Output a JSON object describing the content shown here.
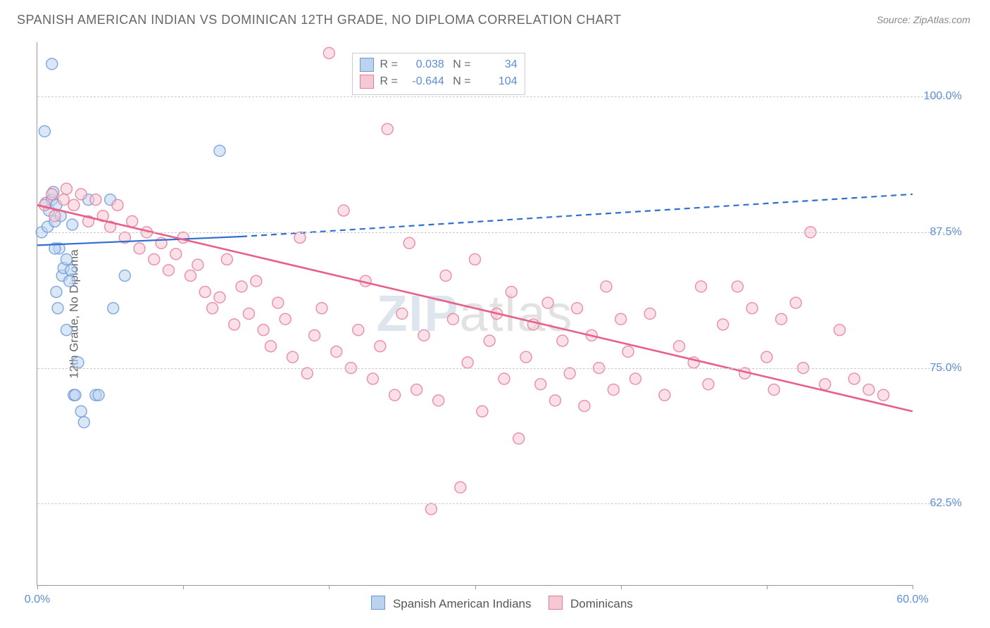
{
  "title": "SPANISH AMERICAN INDIAN VS DOMINICAN 12TH GRADE, NO DIPLOMA CORRELATION CHART",
  "source": "Source: ZipAtlas.com",
  "watermark_bold": "ZIP",
  "watermark_light": "atlas",
  "y_axis_title": "12th Grade, No Diploma",
  "chart": {
    "type": "scatter",
    "xlim": [
      0,
      60
    ],
    "ylim": [
      55,
      105
    ],
    "x_ticks": [
      0,
      10,
      20,
      30,
      40,
      50,
      60
    ],
    "x_tick_labels": {
      "0": "0.0%",
      "60": "60.0%"
    },
    "y_ticks": [
      62.5,
      75.0,
      87.5,
      100.0
    ],
    "y_tick_labels": [
      "62.5%",
      "75.0%",
      "87.5%",
      "100.0%"
    ],
    "grid_color": "#cccccc",
    "background_color": "#ffffff",
    "marker_radius": 8,
    "marker_stroke_width": 1.5,
    "series": [
      {
        "name": "Spanish American Indians",
        "fill": "#bcd3f0",
        "stroke": "#6b98d6",
        "R": "0.038",
        "N": "34",
        "trend": {
          "x1": 0,
          "y1": 86.3,
          "x2_solid": 14,
          "y2_solid": 87.1,
          "x2_dash": 60,
          "y2_dash": 91.0,
          "color": "#2f6fd0",
          "width": 2.2
        },
        "points": [
          [
            0.3,
            87.5
          ],
          [
            0.5,
            96.8
          ],
          [
            0.6,
            90.2
          ],
          [
            0.7,
            88.0
          ],
          [
            0.8,
            89.5
          ],
          [
            1.0,
            90.5
          ],
          [
            1.1,
            91.2
          ],
          [
            1.2,
            88.5
          ],
          [
            1.3,
            90.0
          ],
          [
            1.0,
            103.0
          ],
          [
            1.3,
            82.0
          ],
          [
            1.4,
            80.5
          ],
          [
            1.5,
            86.0
          ],
          [
            1.7,
            83.5
          ],
          [
            1.8,
            84.2
          ],
          [
            2.0,
            85.0
          ],
          [
            2.0,
            78.5
          ],
          [
            2.2,
            83.0
          ],
          [
            2.3,
            84.0
          ],
          [
            2.5,
            72.5
          ],
          [
            2.6,
            72.5
          ],
          [
            2.8,
            75.5
          ],
          [
            3.0,
            71.0
          ],
          [
            3.2,
            70.0
          ],
          [
            3.5,
            90.5
          ],
          [
            4.0,
            72.5
          ],
          [
            4.2,
            72.5
          ],
          [
            5.0,
            90.5
          ],
          [
            5.2,
            80.5
          ],
          [
            6.0,
            83.5
          ],
          [
            1.2,
            86.0
          ],
          [
            1.6,
            89.0
          ],
          [
            12.5,
            95.0
          ],
          [
            2.4,
            88.2
          ]
        ]
      },
      {
        "name": "Dominicans",
        "fill": "#f6c8d4",
        "stroke": "#e67a9b",
        "R": "-0.644",
        "N": "104",
        "trend": {
          "x1": 0,
          "y1": 90.0,
          "x2_solid": 60,
          "y2_solid": 71.0,
          "color": "#e85f88",
          "width": 2.6
        },
        "points": [
          [
            0.5,
            90.0
          ],
          [
            1.0,
            91.0
          ],
          [
            1.2,
            89.0
          ],
          [
            1.8,
            90.5
          ],
          [
            2.0,
            91.5
          ],
          [
            2.5,
            90.0
          ],
          [
            3.0,
            91.0
          ],
          [
            3.5,
            88.5
          ],
          [
            4.0,
            90.5
          ],
          [
            4.5,
            89.0
          ],
          [
            5.0,
            88.0
          ],
          [
            5.5,
            90.0
          ],
          [
            6.0,
            87.0
          ],
          [
            6.5,
            88.5
          ],
          [
            7.0,
            86.0
          ],
          [
            7.5,
            87.5
          ],
          [
            8.0,
            85.0
          ],
          [
            8.5,
            86.5
          ],
          [
            9.0,
            84.0
          ],
          [
            9.5,
            85.5
          ],
          [
            10.0,
            87.0
          ],
          [
            10.5,
            83.5
          ],
          [
            11.0,
            84.5
          ],
          [
            11.5,
            82.0
          ],
          [
            12.0,
            80.5
          ],
          [
            12.5,
            81.5
          ],
          [
            13.0,
            85.0
          ],
          [
            13.5,
            79.0
          ],
          [
            14.0,
            82.5
          ],
          [
            14.5,
            80.0
          ],
          [
            15.0,
            83.0
          ],
          [
            15.5,
            78.5
          ],
          [
            16.0,
            77.0
          ],
          [
            16.5,
            81.0
          ],
          [
            17.0,
            79.5
          ],
          [
            17.5,
            76.0
          ],
          [
            18.0,
            87.0
          ],
          [
            18.5,
            74.5
          ],
          [
            19.0,
            78.0
          ],
          [
            19.5,
            80.5
          ],
          [
            20.0,
            104.0
          ],
          [
            20.5,
            76.5
          ],
          [
            21.0,
            89.5
          ],
          [
            21.5,
            75.0
          ],
          [
            22.0,
            78.5
          ],
          [
            22.5,
            83.0
          ],
          [
            23.0,
            74.0
          ],
          [
            23.5,
            77.0
          ],
          [
            24.0,
            97.0
          ],
          [
            24.5,
            72.5
          ],
          [
            25.0,
            80.0
          ],
          [
            25.5,
            86.5
          ],
          [
            26.0,
            73.0
          ],
          [
            26.5,
            78.0
          ],
          [
            27.0,
            62.0
          ],
          [
            27.5,
            72.0
          ],
          [
            28.0,
            83.5
          ],
          [
            28.5,
            79.5
          ],
          [
            29.0,
            64.0
          ],
          [
            29.5,
            75.5
          ],
          [
            30.0,
            85.0
          ],
          [
            30.5,
            71.0
          ],
          [
            31.0,
            77.5
          ],
          [
            31.5,
            80.0
          ],
          [
            32.0,
            74.0
          ],
          [
            32.5,
            82.0
          ],
          [
            33.0,
            68.5
          ],
          [
            33.5,
            76.0
          ],
          [
            34.0,
            79.0
          ],
          [
            34.5,
            73.5
          ],
          [
            35.0,
            81.0
          ],
          [
            35.5,
            72.0
          ],
          [
            36.0,
            77.5
          ],
          [
            36.5,
            74.5
          ],
          [
            37.0,
            80.5
          ],
          [
            37.5,
            71.5
          ],
          [
            38.0,
            78.0
          ],
          [
            38.5,
            75.0
          ],
          [
            39.0,
            82.5
          ],
          [
            39.5,
            73.0
          ],
          [
            40.0,
            79.5
          ],
          [
            40.5,
            76.5
          ],
          [
            41.0,
            74.0
          ],
          [
            42.0,
            80.0
          ],
          [
            43.0,
            72.5
          ],
          [
            44.0,
            77.0
          ],
          [
            45.0,
            75.5
          ],
          [
            45.5,
            82.5
          ],
          [
            46.0,
            73.5
          ],
          [
            47.0,
            79.0
          ],
          [
            48.0,
            82.5
          ],
          [
            48.5,
            74.5
          ],
          [
            49.0,
            80.5
          ],
          [
            50.0,
            76.0
          ],
          [
            50.5,
            73.0
          ],
          [
            51.0,
            79.5
          ],
          [
            52.0,
            81.0
          ],
          [
            52.5,
            75.0
          ],
          [
            53.0,
            87.5
          ],
          [
            54.0,
            73.5
          ],
          [
            55.0,
            78.5
          ],
          [
            56.0,
            74.0
          ],
          [
            57.0,
            73.0
          ],
          [
            58.0,
            72.5
          ]
        ]
      }
    ]
  },
  "legend_box": {
    "top_pct": 2,
    "left_pct": 36
  }
}
